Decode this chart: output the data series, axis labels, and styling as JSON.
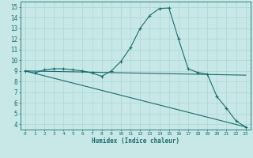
{
  "xlabel": "Humidex (Indice chaleur)",
  "xlim": [
    -0.5,
    23.5
  ],
  "ylim": [
    3.5,
    15.5
  ],
  "xticks": [
    0,
    1,
    2,
    3,
    4,
    5,
    6,
    7,
    8,
    9,
    10,
    11,
    12,
    13,
    14,
    15,
    16,
    17,
    18,
    19,
    20,
    21,
    22,
    23
  ],
  "yticks": [
    4,
    5,
    6,
    7,
    8,
    9,
    10,
    11,
    12,
    13,
    14,
    15
  ],
  "bg_color": "#c8e8e8",
  "line_color": "#1a6b6b",
  "grid_color": "#a8d4d4",
  "line1_x": [
    0,
    1,
    2,
    3,
    4,
    5,
    6,
    7,
    8,
    9,
    10,
    11,
    12,
    13,
    14,
    15,
    16,
    17,
    18,
    19,
    20,
    21,
    22,
    23
  ],
  "line1_y": [
    9.0,
    8.8,
    9.1,
    9.2,
    9.2,
    9.1,
    9.0,
    8.8,
    8.5,
    9.0,
    9.9,
    11.2,
    13.0,
    14.2,
    14.85,
    14.9,
    12.0,
    9.2,
    8.85,
    8.7,
    6.6,
    5.5,
    4.3,
    3.75
  ],
  "line2_x": [
    0,
    23
  ],
  "line2_y": [
    9.0,
    3.75
  ],
  "line3_x": [
    0,
    23
  ],
  "line3_y": [
    9.0,
    8.6
  ]
}
